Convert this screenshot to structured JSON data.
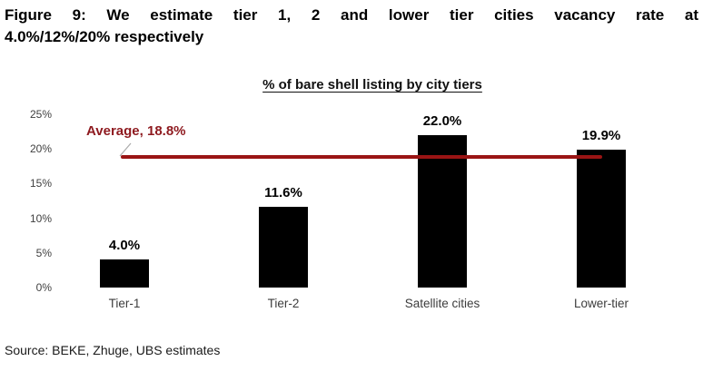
{
  "figure": {
    "title": "Figure 9: We estimate tier 1, 2 and lower tier cities vacancy rate at 4.0%/12%/20% respectively",
    "title_lines": [
      "Figure 9: We estimate tier 1, 2 and lower tier cities vacancy rate at",
      "4.0%/12%/20% respectively"
    ],
    "source": "Source: BEKE, Zhuge, UBS estimates"
  },
  "chart_data": {
    "type": "bar",
    "title": "% of bare shell listing by city tiers",
    "categories": [
      "Tier-1",
      "Tier-2",
      "Satellite cities",
      "Lower-tier"
    ],
    "values": [
      4.0,
      11.6,
      22.0,
      19.9
    ],
    "value_labels": [
      "4.0%",
      "11.6%",
      "22.0%",
      "19.9%"
    ],
    "xlabel": "",
    "ylabel": "",
    "ylim": [
      0,
      25
    ],
    "yticks": [
      {
        "label": "0%",
        "value": 0
      },
      {
        "label": "5%",
        "value": 5
      },
      {
        "label": "10%",
        "value": 10
      },
      {
        "label": "15%",
        "value": 15
      },
      {
        "label": "20%",
        "value": 20
      },
      {
        "label": "25%",
        "value": 25
      }
    ],
    "grid": false,
    "legend": "none",
    "bar_color": "#000000",
    "average_line": {
      "value": 18.8,
      "label": "Average, 18.8%",
      "color": "#9a1414",
      "label_color": "#8e1a1f"
    }
  }
}
